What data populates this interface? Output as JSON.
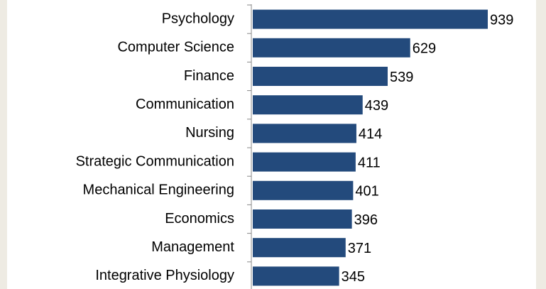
{
  "chart_data": {
    "type": "bar",
    "orientation": "horizontal",
    "categories": [
      "Psychology",
      "Computer Science",
      "Finance",
      "Communication",
      "Nursing",
      "Strategic Communication",
      "Mechanical Engineering",
      "Economics",
      "Management",
      "Integrative Physiology"
    ],
    "values": [
      939,
      629,
      539,
      439,
      414,
      411,
      401,
      396,
      371,
      345
    ],
    "color": "#234a7c"
  }
}
